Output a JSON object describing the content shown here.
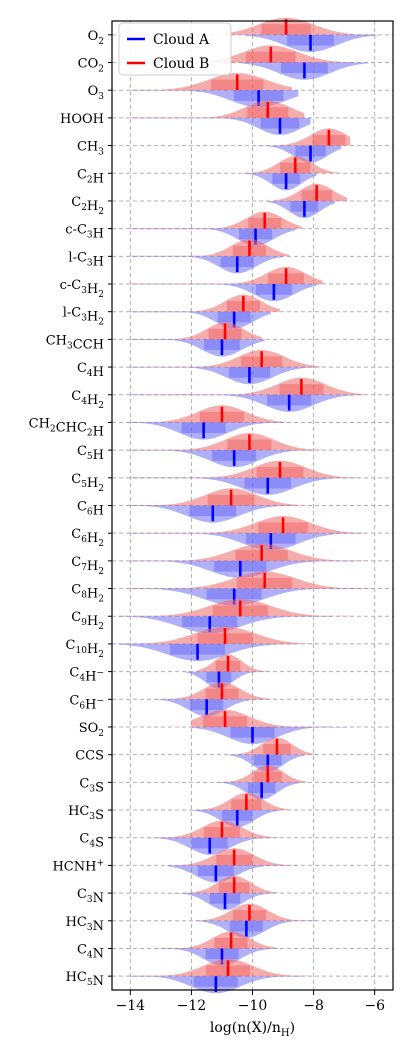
{
  "chart_data": {
    "type": "violin",
    "orientation": "horizontal",
    "xlabel": "log(n(X)/n_H)",
    "xlim": [
      -14.6,
      -5.4
    ],
    "xticks": [
      -14,
      -12,
      -10,
      -8,
      -6
    ],
    "xtick_labels": [
      "−14",
      "−12",
      "−10",
      "−8",
      "−6"
    ],
    "grid": true,
    "legend_position": "upper-left",
    "series": [
      {
        "name": "Cloud A",
        "color": "#0000ff",
        "fill": "#6f6ff5",
        "side": "lower"
      },
      {
        "name": "Cloud B",
        "color": "#ff0000",
        "fill": "#f06868",
        "side": "upper"
      }
    ],
    "categories": [
      {
        "label": "O₂",
        "sub": [
          [
            "O",
            ""
          ],
          [
            "2",
            "sub"
          ]
        ],
        "a": {
          "median": -8.1,
          "range": [
            -10.3,
            -5.9
          ],
          "spread": 0.85
        },
        "b": {
          "median": -8.9,
          "range": [
            -10.9,
            -6.0
          ],
          "spread": 0.9
        }
      },
      {
        "label": "CO₂",
        "sub": [
          [
            "CO",
            ""
          ],
          [
            "2",
            "sub"
          ]
        ],
        "a": {
          "median": -8.3,
          "range": [
            -10.4,
            -6.2
          ],
          "spread": 0.85
        },
        "b": {
          "median": -9.4,
          "range": [
            -11.3,
            -6.8
          ],
          "spread": 0.9
        }
      },
      {
        "label": "O₃",
        "sub": [
          [
            "O",
            ""
          ],
          [
            "3",
            "sub"
          ]
        ],
        "a": {
          "median": -9.8,
          "range": [
            -14.0,
            -8.5
          ],
          "spread": 0.9
        },
        "b": {
          "median": -10.5,
          "range": [
            -14.0,
            -8.7
          ],
          "spread": 0.95
        }
      },
      {
        "label": "HOOH",
        "sub": [
          [
            "HOOH",
            ""
          ]
        ],
        "a": {
          "median": -9.1,
          "range": [
            -14.0,
            -8.1
          ],
          "spread": 0.7
        },
        "b": {
          "median": -9.5,
          "range": [
            -14.0,
            -8.3
          ],
          "spread": 0.75
        }
      },
      {
        "label": "CH₃",
        "sub": [
          [
            "CH",
            ""
          ],
          [
            "3",
            "sub"
          ]
        ],
        "a": {
          "median": -8.1,
          "range": [
            -9.9,
            -7.1
          ],
          "spread": 0.55
        },
        "b": {
          "median": -7.5,
          "range": [
            -9.2,
            -6.8
          ],
          "spread": 0.6
        }
      },
      {
        "label": "C₂H",
        "sub": [
          [
            "C",
            ""
          ],
          [
            "2",
            "sub"
          ],
          [
            "H",
            ""
          ]
        ],
        "a": {
          "median": -8.9,
          "range": [
            -10.3,
            -7.9
          ],
          "spread": 0.5
        },
        "b": {
          "median": -8.6,
          "range": [
            -10.3,
            -7.1
          ],
          "spread": 0.55
        }
      },
      {
        "label": "C₂H₂",
        "sub": [
          [
            "C",
            ""
          ],
          [
            "2",
            "sub"
          ],
          [
            "H",
            ""
          ],
          [
            "2",
            "sub"
          ]
        ],
        "a": {
          "median": -8.3,
          "range": [
            -9.5,
            -7.3
          ],
          "spread": 0.5
        },
        "b": {
          "median": -7.9,
          "range": [
            -9.3,
            -6.9
          ],
          "spread": 0.55
        }
      },
      {
        "label": "c-C₃H",
        "sub": [
          [
            "c-C",
            ""
          ],
          [
            "3",
            "sub"
          ],
          [
            "H",
            ""
          ]
        ],
        "a": {
          "median": -9.9,
          "range": [
            -14.0,
            -8.6
          ],
          "spread": 0.6
        },
        "b": {
          "median": -9.6,
          "range": [
            -14.0,
            -8.4
          ],
          "spread": 0.6
        }
      },
      {
        "label": "l-C₃H",
        "sub": [
          [
            "l-C",
            ""
          ],
          [
            "3",
            "sub"
          ],
          [
            "H",
            ""
          ]
        ],
        "a": {
          "median": -10.5,
          "range": [
            -14.0,
            -9.0
          ],
          "spread": 0.6
        },
        "b": {
          "median": -10.1,
          "range": [
            -14.0,
            -8.8
          ],
          "spread": 0.6
        }
      },
      {
        "label": "c-C₃H₂",
        "sub": [
          [
            "c-C",
            ""
          ],
          [
            "3",
            "sub"
          ],
          [
            "H",
            ""
          ],
          [
            "2",
            "sub"
          ]
        ],
        "a": {
          "median": -9.3,
          "range": [
            -14.0,
            -7.9
          ],
          "spread": 0.65
        },
        "b": {
          "median": -8.9,
          "range": [
            -14.0,
            -7.7
          ],
          "spread": 0.65
        }
      },
      {
        "label": "l-C₃H₂",
        "sub": [
          [
            "l-C",
            ""
          ],
          [
            "3",
            "sub"
          ],
          [
            "H",
            ""
          ],
          [
            "2",
            "sub"
          ]
        ],
        "a": {
          "median": -10.6,
          "range": [
            -14.0,
            -9.4
          ],
          "spread": 0.6
        },
        "b": {
          "median": -10.3,
          "range": [
            -14.0,
            -9.1
          ],
          "spread": 0.6
        }
      },
      {
        "label": "CH₃CCH",
        "sub": [
          [
            "CH",
            ""
          ],
          [
            "3",
            "sub"
          ],
          [
            "CCH",
            ""
          ]
        ],
        "a": {
          "median": -11.0,
          "range": [
            -14.0,
            -9.6
          ],
          "spread": 0.65
        },
        "b": {
          "median": -10.9,
          "range": [
            -14.0,
            -9.7
          ],
          "spread": 0.6
        }
      },
      {
        "label": "C₄H",
        "sub": [
          [
            "C",
            ""
          ],
          [
            "4",
            "sub"
          ],
          [
            "H",
            ""
          ]
        ],
        "a": {
          "median": -10.1,
          "range": [
            -14.0,
            -7.9
          ],
          "spread": 0.75
        },
        "b": {
          "median": -9.7,
          "range": [
            -14.0,
            -7.7
          ],
          "spread": 0.75
        }
      },
      {
        "label": "C₄H₂",
        "sub": [
          [
            "C",
            ""
          ],
          [
            "4",
            "sub"
          ],
          [
            "H",
            ""
          ],
          [
            "2",
            "sub"
          ]
        ],
        "a": {
          "median": -8.8,
          "range": [
            -14.0,
            -6.4
          ],
          "spread": 0.8
        },
        "b": {
          "median": -8.4,
          "range": [
            -14.0,
            -6.3
          ],
          "spread": 0.8
        }
      },
      {
        "label": "CH₂CHC₂H",
        "sub": [
          [
            "CH",
            ""
          ],
          [
            "2",
            "sub"
          ],
          [
            "CHC",
            ""
          ],
          [
            "2",
            "sub"
          ],
          [
            "H",
            ""
          ]
        ],
        "a": {
          "median": -11.6,
          "range": [
            -14.0,
            -9.0
          ],
          "spread": 0.8
        },
        "b": {
          "median": -11.0,
          "range": [
            -14.0,
            -8.7
          ],
          "spread": 0.8
        }
      },
      {
        "label": "C₅H",
        "sub": [
          [
            "C",
            ""
          ],
          [
            "5",
            "sub"
          ],
          [
            "H",
            ""
          ]
        ],
        "a": {
          "median": -10.6,
          "range": [
            -14.0,
            -8.0
          ],
          "spread": 0.8
        },
        "b": {
          "median": -10.1,
          "range": [
            -14.0,
            -7.7
          ],
          "spread": 0.8
        }
      },
      {
        "label": "C₅H₂",
        "sub": [
          [
            "C",
            ""
          ],
          [
            "5",
            "sub"
          ],
          [
            "H",
            ""
          ],
          [
            "2",
            "sub"
          ]
        ],
        "a": {
          "median": -9.5,
          "range": [
            -14.0,
            -6.6
          ],
          "spread": 0.85
        },
        "b": {
          "median": -9.1,
          "range": [
            -14.0,
            -6.5
          ],
          "spread": 0.85
        }
      },
      {
        "label": "C₆H",
        "sub": [
          [
            "C",
            ""
          ],
          [
            "6",
            "sub"
          ],
          [
            "H",
            ""
          ]
        ],
        "a": {
          "median": -11.3,
          "range": [
            -14.0,
            -8.6
          ],
          "spread": 0.85
        },
        "b": {
          "median": -10.7,
          "range": [
            -14.0,
            -8.3
          ],
          "spread": 0.85
        }
      },
      {
        "label": "C₆H₂",
        "sub": [
          [
            "C",
            ""
          ],
          [
            "6",
            "sub"
          ],
          [
            "H",
            ""
          ],
          [
            "2",
            "sub"
          ]
        ],
        "a": {
          "median": -9.4,
          "range": [
            -14.0,
            -6.4
          ],
          "spread": 0.9
        },
        "b": {
          "median": -9.0,
          "range": [
            -14.0,
            -6.3
          ],
          "spread": 0.9
        }
      },
      {
        "label": "C₇H₂",
        "sub": [
          [
            "C",
            ""
          ],
          [
            "7",
            "sub"
          ],
          [
            "H",
            ""
          ],
          [
            "2",
            "sub"
          ]
        ],
        "a": {
          "median": -10.4,
          "range": [
            -14.0,
            -6.6
          ],
          "spread": 0.95
        },
        "b": {
          "median": -9.7,
          "range": [
            -14.0,
            -6.2
          ],
          "spread": 0.95
        }
      },
      {
        "label": "C₈H₂",
        "sub": [
          [
            "C",
            ""
          ],
          [
            "8",
            "sub"
          ],
          [
            "H",
            ""
          ],
          [
            "2",
            "sub"
          ]
        ],
        "a": {
          "median": -10.6,
          "range": [
            -14.0,
            -6.4
          ],
          "spread": 1.0
        },
        "b": {
          "median": -9.6,
          "range": [
            -14.0,
            -6.0
          ],
          "spread": 1.0
        }
      },
      {
        "label": "C₉H₂",
        "sub": [
          [
            "C",
            ""
          ],
          [
            "9",
            "sub"
          ],
          [
            "H",
            ""
          ],
          [
            "2",
            "sub"
          ]
        ],
        "a": {
          "median": -11.4,
          "range": [
            -14.4,
            -7.4
          ],
          "spread": 1.0
        },
        "b": {
          "median": -10.4,
          "range": [
            -14.4,
            -6.8
          ],
          "spread": 1.0
        }
      },
      {
        "label": "C₁₀H₂",
        "sub": [
          [
            "C",
            ""
          ],
          [
            "10",
            "sub"
          ],
          [
            "H",
            ""
          ],
          [
            "2",
            "sub"
          ]
        ],
        "a": {
          "median": -11.8,
          "range": [
            -14.4,
            -8.6
          ],
          "spread": 1.0
        },
        "b": {
          "median": -10.9,
          "range": [
            -14.4,
            -7.9
          ],
          "spread": 1.0
        }
      },
      {
        "label": "C₄H⁻",
        "sub": [
          [
            "C",
            ""
          ],
          [
            "4",
            "sub"
          ],
          [
            "H",
            ""
          ],
          [
            "−",
            "sup"
          ]
        ],
        "a": {
          "median": -11.1,
          "range": [
            -12.2,
            -9.6
          ],
          "spread": 0.45
        },
        "b": {
          "median": -10.8,
          "range": [
            -11.8,
            -9.5
          ],
          "spread": 0.45
        }
      },
      {
        "label": "C₆H⁻",
        "sub": [
          [
            "C",
            ""
          ],
          [
            "6",
            "sub"
          ],
          [
            "H",
            ""
          ],
          [
            "−",
            "sup"
          ]
        ],
        "a": {
          "median": -11.5,
          "range": [
            -13.2,
            -9.4
          ],
          "spread": 0.6
        },
        "b": {
          "median": -11.0,
          "range": [
            -12.9,
            -9.2
          ],
          "spread": 0.6
        }
      },
      {
        "label": "SO₂",
        "sub": [
          [
            "SO",
            ""
          ],
          [
            "2",
            "sub"
          ]
        ],
        "a": {
          "median": -10.0,
          "range": [
            -12.0,
            -6.9
          ],
          "spread": 0.8
        },
        "b": {
          "median": -10.9,
          "range": [
            -12.0,
            -7.4
          ],
          "spread": 0.8
        }
      },
      {
        "label": "CCS",
        "sub": [
          [
            "CCS",
            ""
          ]
        ],
        "a": {
          "median": -9.5,
          "range": [
            -10.8,
            -8.3
          ],
          "spread": 0.5
        },
        "b": {
          "median": -9.2,
          "range": [
            -10.6,
            -7.9
          ],
          "spread": 0.5
        }
      },
      {
        "label": "C₃S",
        "sub": [
          [
            "C",
            ""
          ],
          [
            "3",
            "sub"
          ],
          [
            "S",
            ""
          ]
        ],
        "a": {
          "median": -9.7,
          "range": [
            -11.2,
            -8.4
          ],
          "spread": 0.5
        },
        "b": {
          "median": -9.5,
          "range": [
            -11.0,
            -8.2
          ],
          "spread": 0.5
        }
      },
      {
        "label": "HC₃S",
        "sub": [
          [
            "HC",
            ""
          ],
          [
            "3",
            "sub"
          ],
          [
            "S",
            ""
          ]
        ],
        "a": {
          "median": -10.5,
          "range": [
            -12.0,
            -9.1
          ],
          "spread": 0.55
        },
        "b": {
          "median": -10.2,
          "range": [
            -11.8,
            -8.8
          ],
          "spread": 0.55
        }
      },
      {
        "label": "C₄S",
        "sub": [
          [
            "C",
            ""
          ],
          [
            "4",
            "sub"
          ],
          [
            "S",
            ""
          ]
        ],
        "a": {
          "median": -11.4,
          "range": [
            -13.4,
            -9.4
          ],
          "spread": 0.65
        },
        "b": {
          "median": -11.0,
          "range": [
            -13.1,
            -9.1
          ],
          "spread": 0.65
        }
      },
      {
        "label": "HCNH⁺",
        "sub": [
          [
            "HCNH",
            ""
          ],
          [
            "+",
            "sup"
          ]
        ],
        "a": {
          "median": -11.2,
          "range": [
            -12.8,
            -8.8
          ],
          "spread": 0.65
        },
        "b": {
          "median": -10.6,
          "range": [
            -12.4,
            -8.5
          ],
          "spread": 0.65
        }
      },
      {
        "label": "C₃N",
        "sub": [
          [
            "C",
            ""
          ],
          [
            "3",
            "sub"
          ],
          [
            "N",
            ""
          ]
        ],
        "a": {
          "median": -10.9,
          "range": [
            -12.6,
            -9.3
          ],
          "spread": 0.55
        },
        "b": {
          "median": -10.6,
          "range": [
            -12.3,
            -9.1
          ],
          "spread": 0.55
        }
      },
      {
        "label": "HC₃N",
        "sub": [
          [
            "HC",
            ""
          ],
          [
            "3",
            "sub"
          ],
          [
            "N",
            ""
          ]
        ],
        "a": {
          "median": -10.2,
          "range": [
            -11.9,
            -7.9
          ],
          "spread": 0.6
        },
        "b": {
          "median": -10.1,
          "range": [
            -11.8,
            -7.9
          ],
          "spread": 0.6
        }
      },
      {
        "label": "C₄N",
        "sub": [
          [
            "C",
            ""
          ],
          [
            "4",
            "sub"
          ],
          [
            "N",
            ""
          ]
        ],
        "a": {
          "median": -11.0,
          "range": [
            -13.2,
            -9.3
          ],
          "spread": 0.6
        },
        "b": {
          "median": -10.7,
          "range": [
            -12.9,
            -9.1
          ],
          "spread": 0.6
        }
      },
      {
        "label": "HC₅N",
        "sub": [
          [
            "HC",
            ""
          ],
          [
            "5",
            "sub"
          ],
          [
            "N",
            ""
          ]
        ],
        "a": {
          "median": -11.2,
          "range": [
            -14.0,
            -8.4
          ],
          "spread": 0.8
        },
        "b": {
          "median": -10.8,
          "range": [
            -14.0,
            -8.1
          ],
          "spread": 0.8
        }
      }
    ]
  }
}
